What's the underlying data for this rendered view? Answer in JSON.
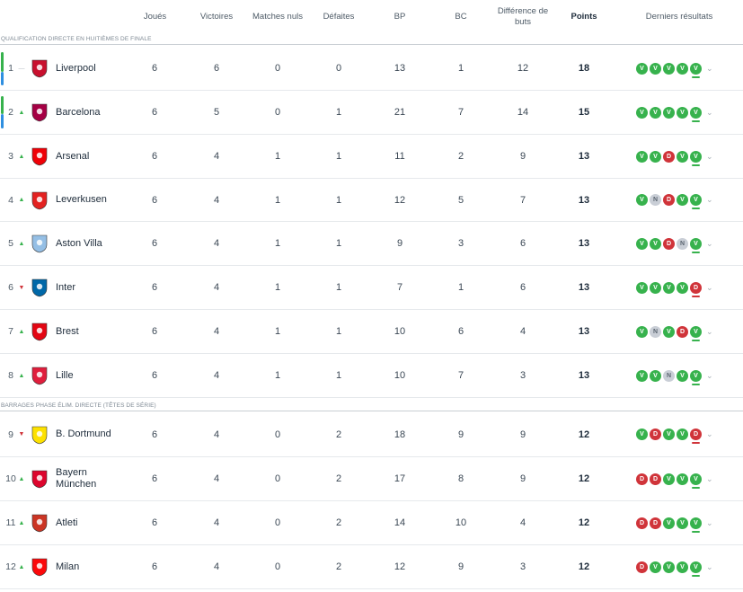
{
  "columns": {
    "played": "Joués",
    "wins": "Victoires",
    "draws": "Matches nuls",
    "losses": "Défaites",
    "gf": "BP",
    "ga": "BC",
    "gd": "Différence de buts",
    "points": "Points",
    "form": "Derniers résultats"
  },
  "sections": [
    {
      "label": "QUALIFICATION DIRECTE EN HUITIÈMES DE FINALE"
    },
    {
      "label": "BARRAGES PHASE ÉLIM. DIRECTE (TÊTES DE SÉRIE)"
    }
  ],
  "colors": {
    "qualify_green": "#37b24d",
    "qualify_blue": "#2f8fe0",
    "win": "#37b24d",
    "loss": "#d0343a",
    "draw": "#c9ced6"
  },
  "teams": [
    {
      "pos": "1",
      "trend": "same",
      "name": "Liverpool",
      "crest": "liverpool-crest-icon",
      "crest_color": "#c8102e",
      "played": "6",
      "wins": "6",
      "draws": "0",
      "losses": "0",
      "gf": "13",
      "ga": "1",
      "gd": "12",
      "points": "18",
      "form": [
        "V",
        "V",
        "V",
        "V",
        "V"
      ]
    },
    {
      "pos": "2",
      "trend": "up",
      "name": "Barcelona",
      "crest": "barcelona-crest-icon",
      "crest_color": "#a50044",
      "played": "6",
      "wins": "5",
      "draws": "0",
      "losses": "1",
      "gf": "21",
      "ga": "7",
      "gd": "14",
      "points": "15",
      "form": [
        "V",
        "V",
        "V",
        "V",
        "V"
      ]
    },
    {
      "pos": "3",
      "trend": "up",
      "name": "Arsenal",
      "crest": "arsenal-crest-icon",
      "crest_color": "#ef0107",
      "played": "6",
      "wins": "4",
      "draws": "1",
      "losses": "1",
      "gf": "11",
      "ga": "2",
      "gd": "9",
      "points": "13",
      "form": [
        "V",
        "V",
        "D",
        "V",
        "V"
      ]
    },
    {
      "pos": "4",
      "trend": "up",
      "name": "Leverkusen",
      "crest": "leverkusen-crest-icon",
      "crest_color": "#e32221",
      "played": "6",
      "wins": "4",
      "draws": "1",
      "losses": "1",
      "gf": "12",
      "ga": "5",
      "gd": "7",
      "points": "13",
      "form": [
        "V",
        "N",
        "D",
        "V",
        "V"
      ]
    },
    {
      "pos": "5",
      "trend": "up",
      "name": "Aston Villa",
      "crest": "aston-villa-crest-icon",
      "crest_color": "#95bfe5",
      "played": "6",
      "wins": "4",
      "draws": "1",
      "losses": "1",
      "gf": "9",
      "ga": "3",
      "gd": "6",
      "points": "13",
      "form": [
        "V",
        "V",
        "D",
        "N",
        "V"
      ]
    },
    {
      "pos": "6",
      "trend": "down",
      "name": "Inter",
      "crest": "inter-crest-icon",
      "crest_color": "#0068a8",
      "played": "6",
      "wins": "4",
      "draws": "1",
      "losses": "1",
      "gf": "7",
      "ga": "1",
      "gd": "6",
      "points": "13",
      "form": [
        "V",
        "V",
        "V",
        "V",
        "D"
      ]
    },
    {
      "pos": "7",
      "trend": "up",
      "name": "Brest",
      "crest": "brest-crest-icon",
      "crest_color": "#e30613",
      "played": "6",
      "wins": "4",
      "draws": "1",
      "losses": "1",
      "gf": "10",
      "ga": "6",
      "gd": "4",
      "points": "13",
      "form": [
        "V",
        "N",
        "V",
        "D",
        "V"
      ]
    },
    {
      "pos": "8",
      "trend": "up",
      "name": "Lille",
      "crest": "lille-crest-icon",
      "crest_color": "#e01e3c",
      "played": "6",
      "wins": "4",
      "draws": "1",
      "losses": "1",
      "gf": "10",
      "ga": "7",
      "gd": "3",
      "points": "13",
      "form": [
        "V",
        "V",
        "N",
        "V",
        "V"
      ]
    },
    {
      "pos": "9",
      "trend": "down",
      "name": "B. Dortmund",
      "crest": "dortmund-crest-icon",
      "crest_color": "#fde100",
      "played": "6",
      "wins": "4",
      "draws": "0",
      "losses": "2",
      "gf": "18",
      "ga": "9",
      "gd": "9",
      "points": "12",
      "form": [
        "V",
        "D",
        "V",
        "V",
        "D"
      ]
    },
    {
      "pos": "10",
      "trend": "up",
      "name": "Bayern München",
      "crest": "bayern-crest-icon",
      "crest_color": "#dc052d",
      "played": "6",
      "wins": "4",
      "draws": "0",
      "losses": "2",
      "gf": "17",
      "ga": "8",
      "gd": "9",
      "points": "12",
      "form": [
        "D",
        "D",
        "V",
        "V",
        "V"
      ]
    },
    {
      "pos": "11",
      "trend": "up",
      "name": "Atleti",
      "crest": "atletico-crest-icon",
      "crest_color": "#cb3524",
      "played": "6",
      "wins": "4",
      "draws": "0",
      "losses": "2",
      "gf": "14",
      "ga": "10",
      "gd": "4",
      "points": "12",
      "form": [
        "D",
        "D",
        "V",
        "V",
        "V"
      ]
    },
    {
      "pos": "12",
      "trend": "up",
      "name": "Milan",
      "crest": "milan-crest-icon",
      "crest_color": "#fb090b",
      "played": "6",
      "wins": "4",
      "draws": "0",
      "losses": "2",
      "gf": "12",
      "ga": "9",
      "gd": "3",
      "points": "12",
      "form": [
        "D",
        "V",
        "V",
        "V",
        "V"
      ]
    }
  ]
}
